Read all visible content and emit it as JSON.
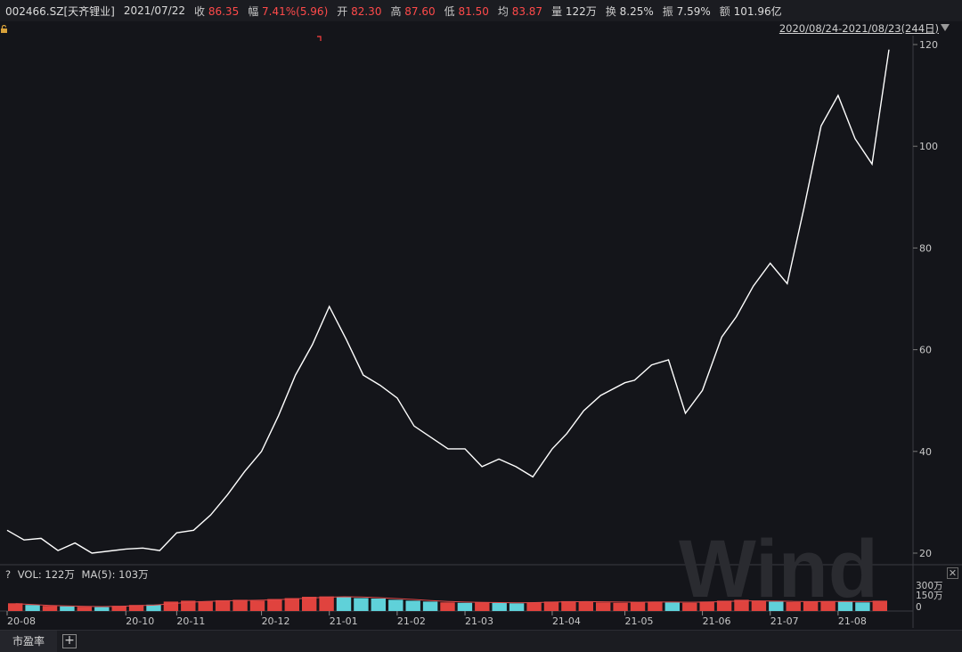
{
  "quote": {
    "code": "002466.SZ[天齐锂业]",
    "date": "2021/07/22",
    "close_label": "收",
    "close_value": "86.35",
    "change_label": "幅",
    "change_value": "7.41%(5.96)",
    "open_label": "开",
    "open_value": "82.30",
    "high_label": "高",
    "high_value": "87.60",
    "low_label": "低",
    "low_value": "81.50",
    "avg_label": "均",
    "avg_value": "83.87",
    "volume_label": "量",
    "volume_value": "122万",
    "turnover_label": "换",
    "turnover_value": "8.25%",
    "amplitude_label": "振",
    "amplitude_value": "7.59%",
    "amount_label": "额",
    "amount_value": "101.96亿"
  },
  "range_label": "2020/08/24-2021/08/23(244日)",
  "volume_panel": {
    "help": "?",
    "vol_label": "VOL: 122万",
    "ma_label": "MA(5): 103万",
    "close": "✕"
  },
  "bottom_bar": {
    "tab_label": "市盈率",
    "add_label": "+"
  },
  "watermark": "Wind",
  "colors": {
    "background": "#14151a",
    "price_line": "#ffffff",
    "volume_up": "#e0433e",
    "volume_down": "#5fd1d9",
    "ma_line": "#e04a4a"
  },
  "chart_data": {
    "type": "line",
    "title": "",
    "x": [
      "2020-08-24",
      "2020-08-31",
      "2020-09-07",
      "2020-09-14",
      "2020-09-21",
      "2020-09-28",
      "2020-10-12",
      "2020-10-19",
      "2020-10-26",
      "2020-11-02",
      "2020-11-09",
      "2020-11-16",
      "2020-11-23",
      "2020-11-30",
      "2020-12-07",
      "2020-12-14",
      "2020-12-21",
      "2020-12-28",
      "2021-01-04",
      "2021-01-11",
      "2021-01-18",
      "2021-01-25",
      "2021-02-01",
      "2021-02-08",
      "2021-02-22",
      "2021-03-01",
      "2021-03-08",
      "2021-03-15",
      "2021-03-22",
      "2021-03-29",
      "2021-04-06",
      "2021-04-12",
      "2021-04-19",
      "2021-04-26",
      "2021-05-06",
      "2021-05-10",
      "2021-05-17",
      "2021-05-24",
      "2021-05-31",
      "2021-06-07",
      "2021-06-15",
      "2021-06-21",
      "2021-06-28",
      "2021-07-05",
      "2021-07-12",
      "2021-07-19",
      "2021-07-26",
      "2021-08-02",
      "2021-08-09",
      "2021-08-16",
      "2021-08-23"
    ],
    "series": [
      {
        "values": [
          24.5,
          22.6,
          22.9,
          20.5,
          22.0,
          20.0,
          20.8,
          21.0,
          20.5,
          24.0,
          24.5,
          27.5,
          31.5,
          36.0,
          40.0,
          47.0,
          55.0,
          61.0,
          68.5,
          62.0,
          55.0,
          53.0,
          50.5,
          45.0,
          40.5,
          40.5,
          37.0,
          38.5,
          37.0,
          35.0,
          40.5,
          43.5,
          48.0,
          51.0,
          53.5,
          54.0,
          57.0,
          58.0,
          47.5,
          52.0,
          62.5,
          66.5,
          72.5,
          77.0,
          73.0,
          88.0,
          104.0,
          110.0,
          101.5,
          96.5,
          119.0
        ]
      }
    ],
    "ylim": [
      20,
      120
    ],
    "yticks": [
      20,
      40,
      60,
      80,
      100,
      120
    ],
    "xticks": [
      "20-08",
      "20-10",
      "20-11",
      "20-12",
      "21-01",
      "21-02",
      "21-03",
      "21-04",
      "21-05",
      "21-06",
      "21-07",
      "21-08"
    ],
    "volume": {
      "yticks": [
        "300万",
        "150万",
        "0"
      ],
      "values_wan": [
        90,
        70,
        60,
        55,
        50,
        45,
        60,
        70,
        75,
        110,
        120,
        115,
        125,
        130,
        120,
        140,
        150,
        165,
        170,
        165,
        150,
        145,
        130,
        120,
        110,
        100,
        95,
        100,
        95,
        90,
        100,
        110,
        115,
        110,
        100,
        95,
        105,
        110,
        100,
        95,
        110,
        120,
        130,
        115,
        110,
        105,
        110,
        115,
        110,
        100,
        120
      ],
      "ma5_wan": [
        85,
        75,
        65,
        60,
        55,
        52,
        55,
        62,
        68,
        85,
        100,
        112,
        118,
        122,
        125,
        130,
        140,
        150,
        160,
        165,
        162,
        155,
        145,
        135,
        122,
        112,
        105,
        100,
        98,
        95,
        98,
        103,
        108,
        110,
        108,
        104,
        102,
        104,
        104,
        102,
        104,
        110,
        118,
        118,
        115,
        112,
        110,
        111,
        112,
        110,
        112
      ]
    },
    "grid": false,
    "legend": "none"
  }
}
